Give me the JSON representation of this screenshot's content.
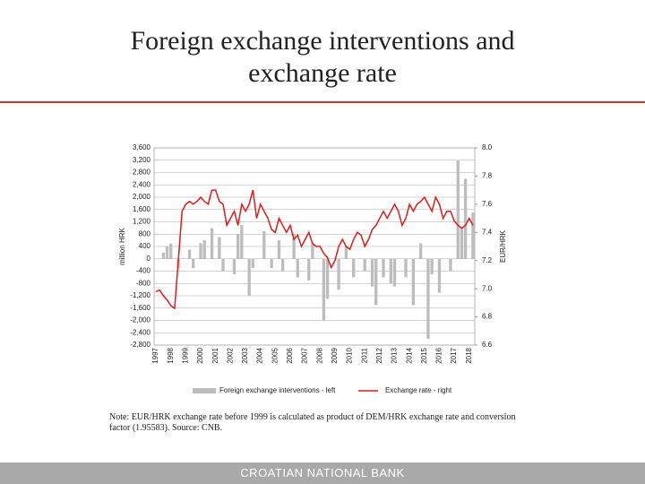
{
  "chart_data": {
    "type": "bar_line",
    "title": "Foreign exchange interventions and exchange rate",
    "ylabel": "million HRK",
    "y2label": "EUR/HRK",
    "categories": [
      "1997",
      null,
      null,
      null,
      "1998",
      null,
      null,
      null,
      "1999",
      null,
      null,
      null,
      "2000",
      null,
      null,
      null,
      "2001",
      null,
      null,
      null,
      "2002",
      null,
      null,
      null,
      "2003",
      null,
      null,
      null,
      "2004",
      null,
      null,
      null,
      "2005",
      null,
      null,
      null,
      "2006",
      null,
      null,
      null,
      "2007",
      null,
      null,
      null,
      "2008",
      null,
      null,
      null,
      "2009",
      null,
      null,
      null,
      "2010",
      null,
      null,
      null,
      "2011",
      null,
      null,
      null,
      "2012",
      null,
      null,
      null,
      "2013",
      null,
      null,
      null,
      "2014",
      null,
      null,
      null,
      "2015",
      null,
      null,
      null,
      "2016",
      null,
      null,
      null,
      "2017",
      null,
      null,
      null,
      "2018",
      null
    ],
    "series": [
      {
        "name": "Foreign exchange interventions - left",
        "color": "#bdbdbd",
        "kind": "bar",
        "values": [
          0,
          0,
          200,
          400,
          500,
          0,
          -300,
          0,
          0,
          300,
          -300,
          0,
          500,
          600,
          0,
          1000,
          0,
          700,
          -400,
          0,
          0,
          -500,
          800,
          1100,
          0,
          -1200,
          -300,
          0,
          0,
          900,
          0,
          -300,
          0,
          600,
          -400,
          0,
          0,
          800,
          -600,
          0,
          0,
          -700,
          500,
          0,
          0,
          -2000,
          -1300,
          0,
          0,
          -1000,
          0,
          400,
          0,
          -600,
          0,
          0,
          -400,
          0,
          -900,
          -1500,
          0,
          -600,
          0,
          -800,
          -900,
          0,
          0,
          -600,
          0,
          -1500,
          0,
          500,
          0,
          -2600,
          -500,
          0,
          -1100,
          0,
          0,
          -400,
          0,
          3200,
          1000,
          2600,
          0,
          1500
        ]
      },
      {
        "name": "Exchange rate - right",
        "color": "#e31a1c",
        "kind": "line",
        "axis": "y2",
        "values": [
          6.98,
          6.99,
          6.95,
          6.92,
          6.88,
          6.86,
          7.2,
          7.55,
          7.6,
          7.62,
          7.6,
          7.62,
          7.65,
          7.62,
          7.6,
          7.7,
          7.7,
          7.62,
          7.6,
          7.45,
          7.5,
          7.55,
          7.45,
          7.6,
          7.55,
          7.6,
          7.7,
          7.5,
          7.6,
          7.55,
          7.5,
          7.42,
          7.4,
          7.5,
          7.45,
          7.4,
          7.45,
          7.35,
          7.38,
          7.3,
          7.35,
          7.4,
          7.32,
          7.3,
          7.3,
          7.25,
          7.22,
          7.15,
          7.2,
          7.3,
          7.35,
          7.3,
          7.28,
          7.35,
          7.4,
          7.38,
          7.3,
          7.35,
          7.42,
          7.45,
          7.5,
          7.55,
          7.5,
          7.55,
          7.6,
          7.55,
          7.45,
          7.5,
          7.6,
          7.55,
          7.6,
          7.62,
          7.65,
          7.6,
          7.55,
          7.65,
          7.6,
          7.5,
          7.55,
          7.55,
          7.48,
          7.45,
          7.43,
          7.45,
          7.5,
          7.45
        ]
      }
    ],
    "ylim": [
      -2800,
      3600
    ],
    "yticks": [
      {
        "value": 3600,
        "label": "3,600"
      },
      {
        "value": 3200,
        "label": "3,200"
      },
      {
        "value": 2800,
        "label": "2,800"
      },
      {
        "value": 2400,
        "label": "2,400"
      },
      {
        "value": 2000,
        "label": "2,000"
      },
      {
        "value": 1600,
        "label": "1,600"
      },
      {
        "value": 1200,
        "label": "1,200"
      },
      800,
      400,
      0,
      -400,
      -800,
      {
        "value": -1200,
        "label": "-1,200"
      },
      {
        "value": -1600,
        "label": "-1,600"
      },
      {
        "value": -2000,
        "label": "-2,000"
      },
      {
        "value": -2400,
        "label": "-2,400"
      },
      {
        "value": -2800,
        "label": "-2,800"
      }
    ],
    "y2lim": [
      6.6,
      8.0
    ],
    "y2ticks": [
      {
        "value": 8,
        "label": "8.0"
      },
      7.8,
      7.6,
      7.4,
      7.2,
      {
        "value": 7,
        "label": "7.0"
      },
      6.8,
      6.6
    ],
    "grid": true,
    "legend": "bottom"
  },
  "note": "Note: EUR/HRK exchange rate before 1999 is calculated as product of DEM/HRK exchange rate and conversion factor (1.95583). Source: CNB.",
  "footer": "CROATIAN NATIONAL BANK"
}
